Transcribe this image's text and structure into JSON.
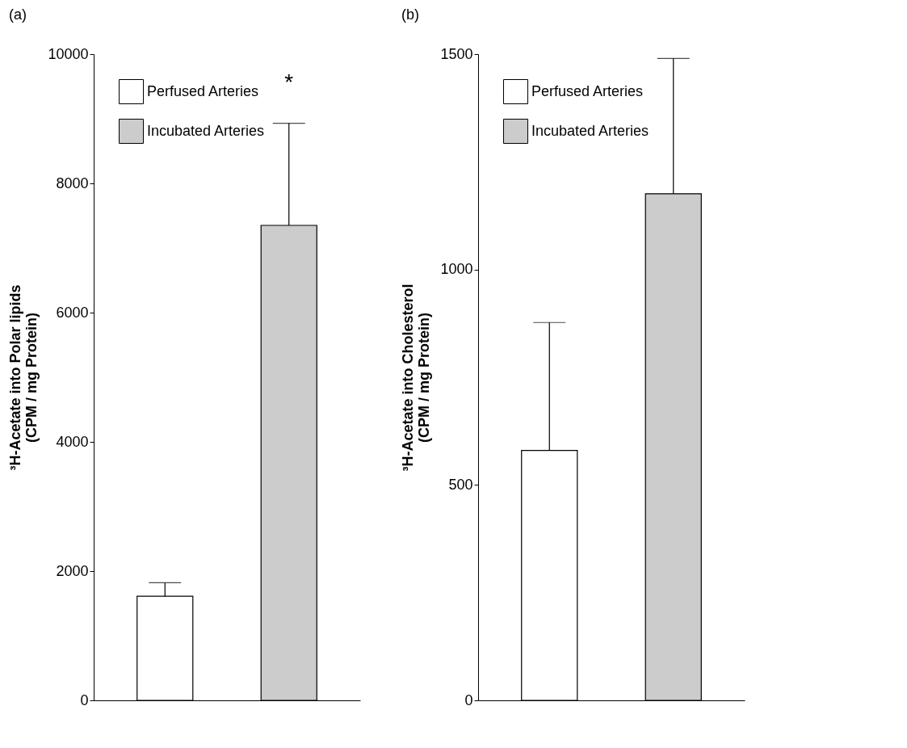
{
  "chart_data": [
    {
      "type": "bar",
      "title": "(a)",
      "ylabel": "³H-Acetate into Polar lipids\n(CPM / mg Protein)",
      "categories": [
        null,
        null
      ],
      "series": [
        {
          "name": "Perfused Arteries",
          "color": "#ffffff",
          "values": [
            1610,
            null
          ],
          "errors": [
            [
              1610,
              1820
            ],
            null
          ]
        },
        {
          "name": "Incubated Arteries",
          "color": "#cccccc",
          "values": [
            null,
            7350
          ],
          "errors": [
            null,
            [
              7350,
              8930
            ]
          ]
        }
      ],
      "ylim": [
        0,
        10000
      ],
      "yticks": [
        0,
        2000,
        4000,
        6000,
        8000,
        10000
      ],
      "legend": "top left",
      "annotations": [
        "*"
      ]
    },
    {
      "type": "bar",
      "title": "(b)",
      "ylabel": "³H-Acetate into Cholesterol\n(CPM / mg Protein)",
      "categories": [
        null,
        null
      ],
      "series": [
        {
          "name": "Perfused Arteries",
          "color": "#ffffff",
          "values": [
            580,
            null
          ],
          "errors": [
            [
              580,
              877
            ],
            null
          ]
        },
        {
          "name": "Incubated Arteries",
          "color": "#cccccc",
          "values": [
            null,
            1176
          ],
          "errors": [
            null,
            [
              1176,
              1490
            ]
          ]
        }
      ],
      "ylim": [
        0,
        1500
      ],
      "yticks": [
        0,
        500,
        1000,
        1500
      ],
      "legend": "top left"
    }
  ]
}
